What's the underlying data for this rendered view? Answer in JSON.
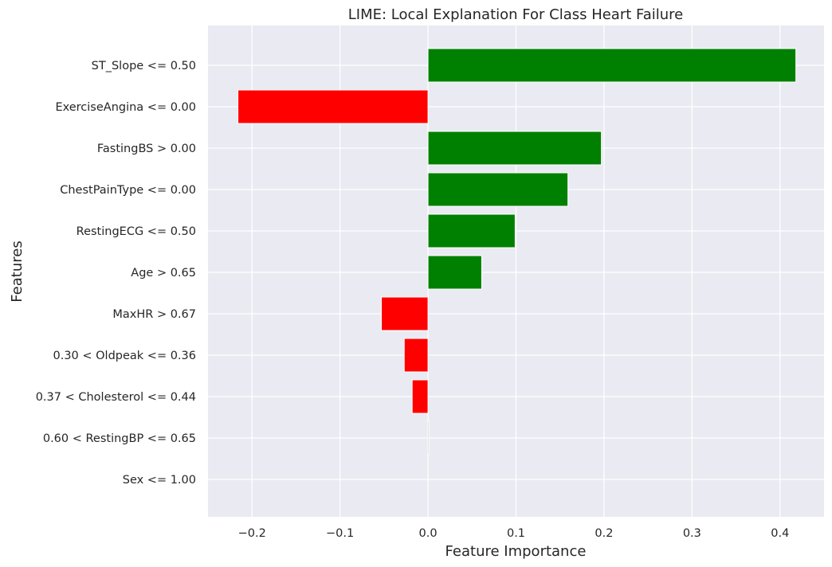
{
  "chart_data": {
    "type": "bar",
    "orientation": "horizontal",
    "title": "LIME: Local Explanation For Class Heart Failure",
    "xlabel": "Feature Importance",
    "ylabel": "Features",
    "xlim": [
      -0.25,
      0.45
    ],
    "xticks": [
      -0.2,
      -0.1,
      0.0,
      0.1,
      0.2,
      0.3,
      0.4
    ],
    "xtick_labels": [
      "−0.2",
      "−0.1",
      "0.0",
      "0.1",
      "0.2",
      "0.3",
      "0.4"
    ],
    "categories": [
      "ST_Slope <= 0.50",
      "ExerciseAngina <= 0.00",
      "FastingBS > 0.00",
      "ChestPainType <= 0.00",
      "RestingECG <= 0.50",
      "Age > 0.65",
      "MaxHR > 0.67",
      "0.30 < Oldpeak <= 0.36",
      "0.37 < Cholesterol <= 0.44",
      "0.60 < RestingBP <= 0.65",
      "Sex <= 1.00"
    ],
    "values": [
      0.418,
      -0.216,
      0.197,
      0.159,
      0.099,
      0.061,
      -0.053,
      -0.027,
      -0.018,
      0.001,
      0.0
    ],
    "grid": true,
    "colors": {
      "positive": "#008000",
      "negative": "#ff0000",
      "background": "#eaeaf2",
      "grid": "#ffffff"
    }
  }
}
